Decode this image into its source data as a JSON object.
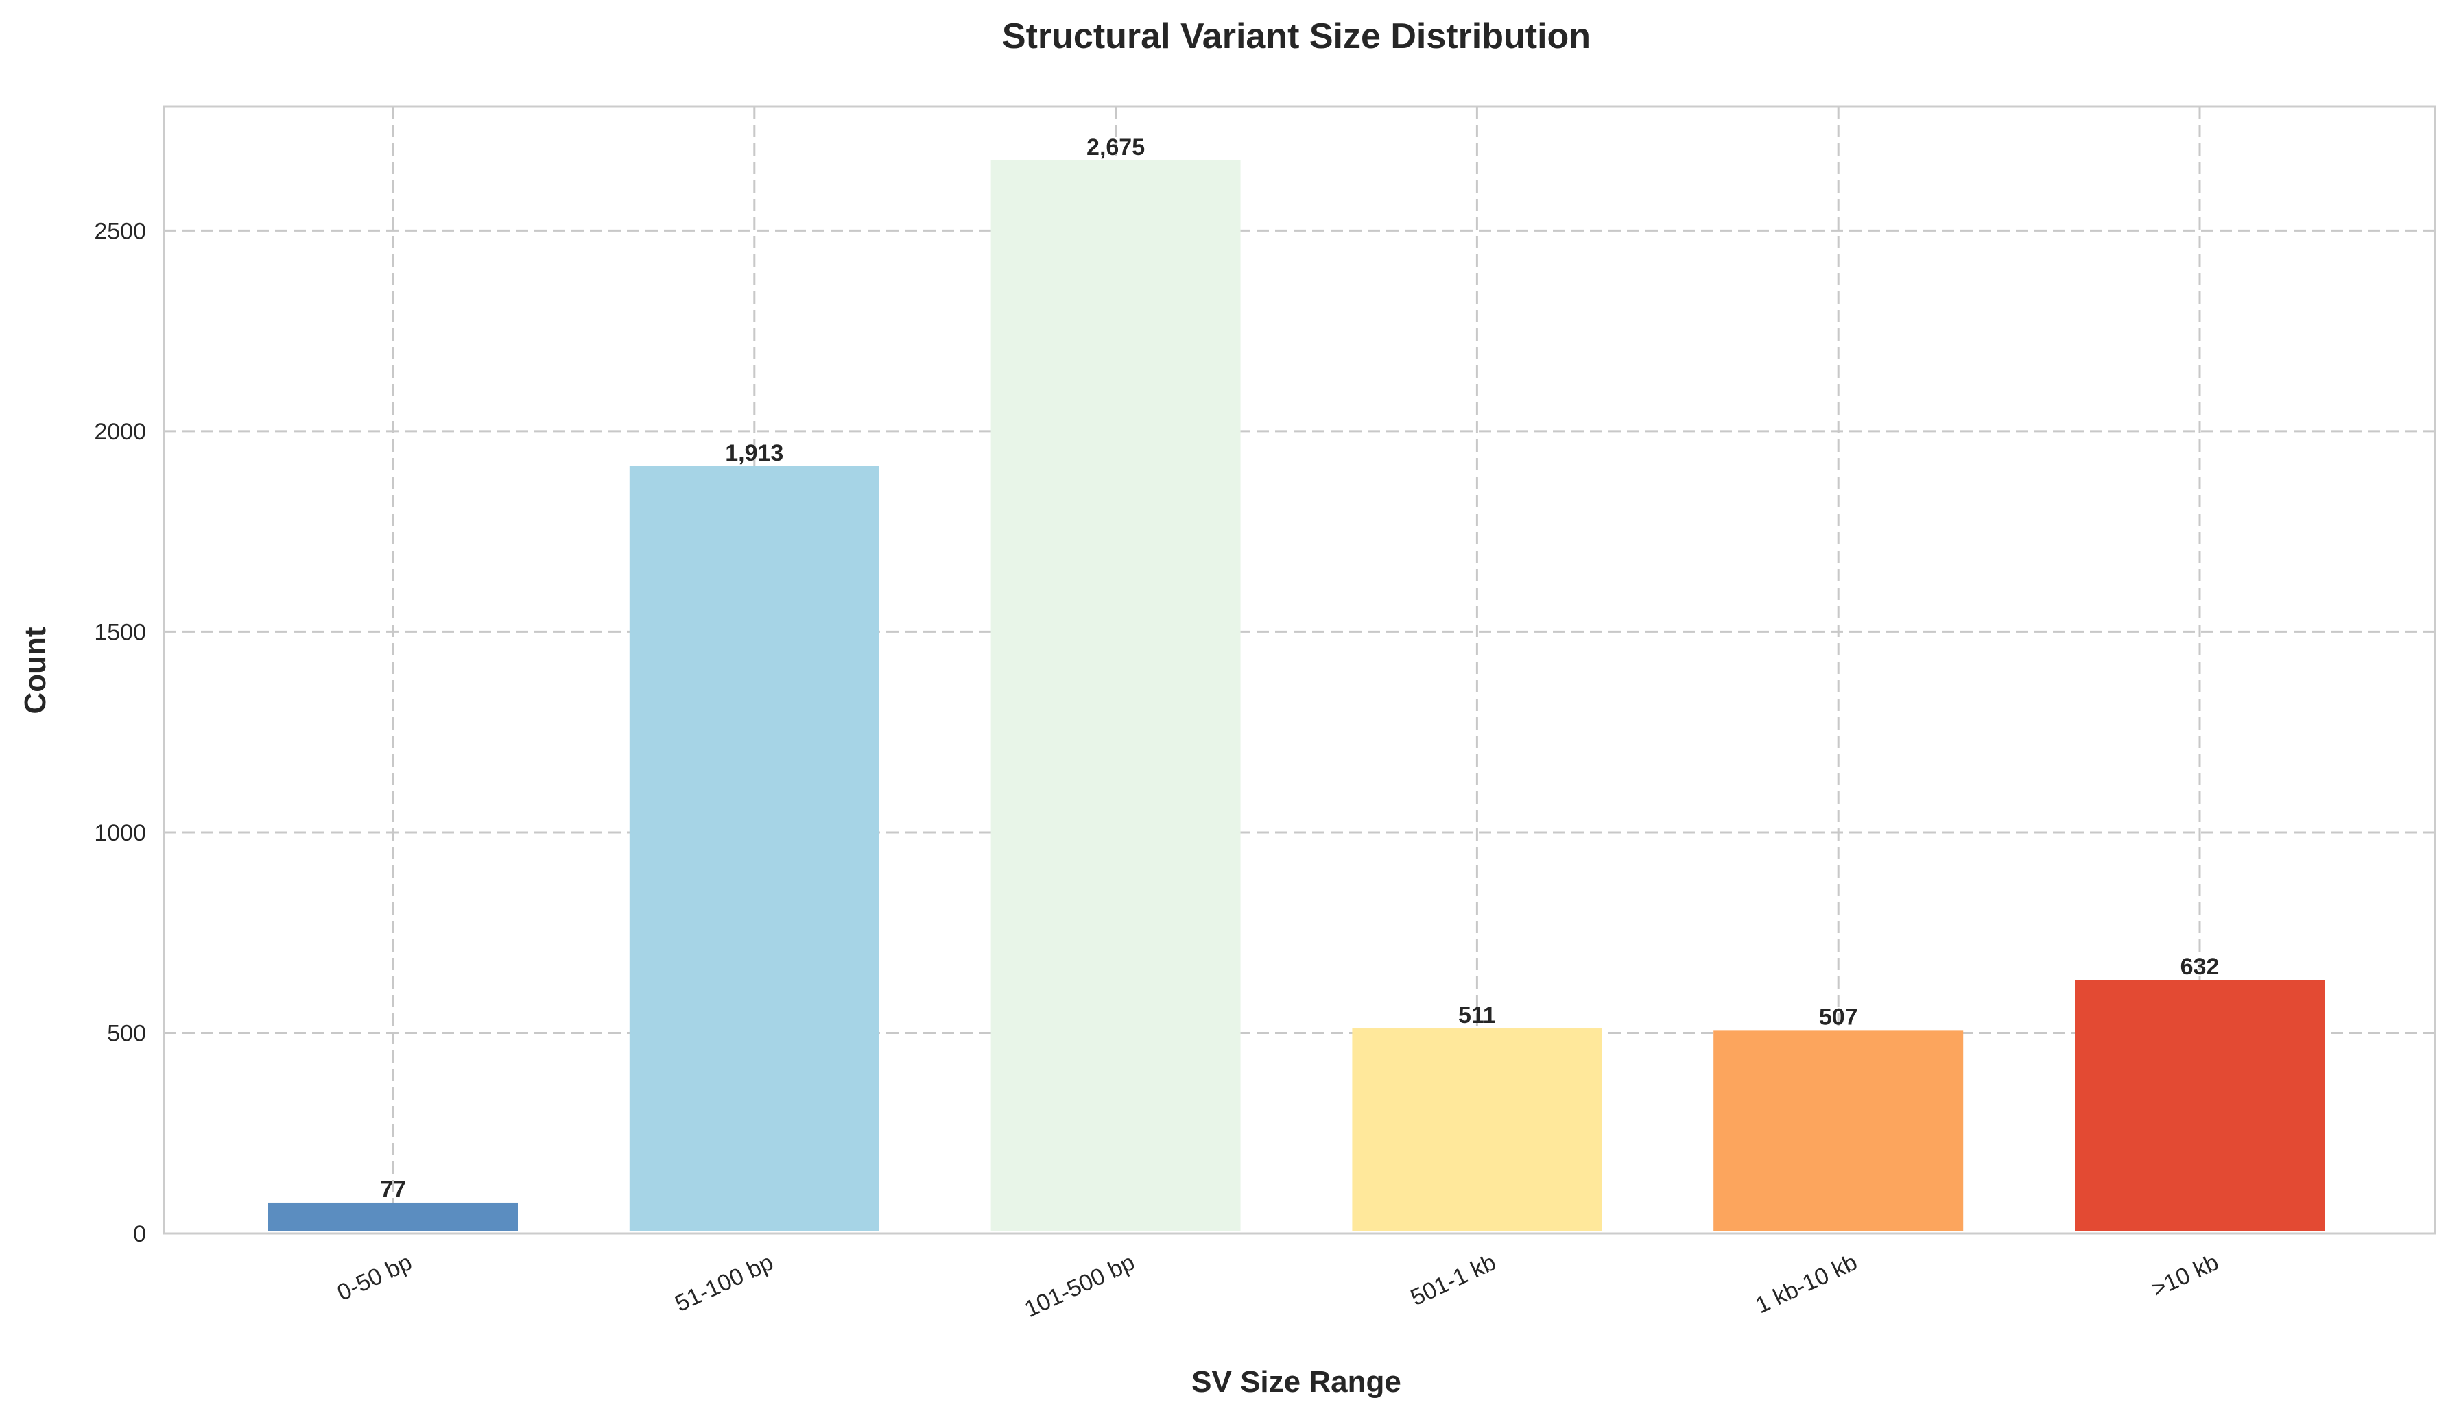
{
  "chart_data": {
    "type": "bar",
    "title": "Structural Variant Size Distribution",
    "xlabel": "SV Size Range",
    "ylabel": "Count",
    "categories": [
      "0-50 bp",
      "51-100 bp",
      "101-500 bp",
      "501-1 kb",
      "1 kb-10 kb",
      ">10 kb"
    ],
    "values": [
      77,
      1913,
      2675,
      511,
      507,
      632
    ],
    "value_labels": [
      "77",
      "1,913",
      "2,675",
      "511",
      "507",
      "632"
    ],
    "colors": [
      "#5b8dc0",
      "#a6d4e6",
      "#e8f5e8",
      "#ffe89b",
      "#fca55d",
      "#e34a33"
    ],
    "ylim": [
      0,
      2810
    ],
    "yticks": [
      0,
      500,
      1000,
      1500,
      2000,
      2500
    ],
    "grid": true,
    "legend": "none"
  }
}
